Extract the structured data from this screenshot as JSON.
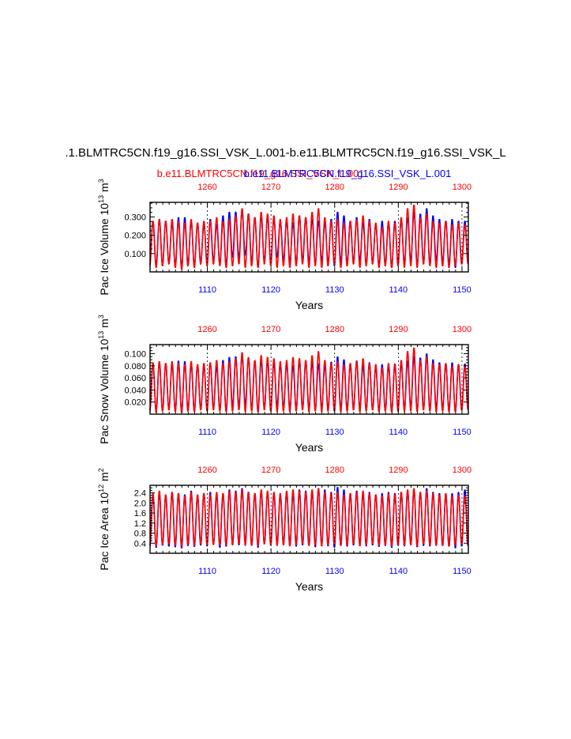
{
  "title": ".1.BLMTRC5CN.f19_g16.SSI_VSK_L.001-b.e11.BLMTRC5CN.f19_g16.SSI_VSK_L",
  "subtitle_red": "b.e11.BLMTRC5CN.f19_g16.SSI_VSK_L.001",
  "subtitle_blue": "b.e11.BLMTRC5CN.f19_g16.SSI_VSK_L.001",
  "colors": {
    "case1": "#0000ff",
    "case2": "#ff0000"
  },
  "chart_data": [
    {
      "type": "line",
      "id": "ice-volume",
      "ylabel": "Pac Ice Volume",
      "yunits_prefix": "10",
      "yunits_exp": "13",
      "yunits_suffix": "m",
      "yunits_suffix_exp": "3",
      "xlabel": "Years",
      "xlim_bottom": [
        1101,
        1151
      ],
      "xlim_top": [
        1251,
        1301
      ],
      "bottom_ticks": [
        "1110",
        "1120",
        "1130",
        "1140",
        "1150"
      ],
      "top_ticks": [
        "1260",
        "1270",
        "1280",
        "1290",
        "1300"
      ],
      "ylim": [
        0.0,
        0.38
      ],
      "yticks": [
        "0.100",
        "0.200",
        "0.300"
      ],
      "ytick_values": [
        0.1,
        0.2,
        0.3
      ],
      "series": [
        {
          "name": "b.e11.BLMTRC5CN.f19_g16.SSI_VSK_L.001 (blue)",
          "color": "#0000ff",
          "annual_max": [
            0.28,
            0.29,
            0.28,
            0.27,
            0.3,
            0.3,
            0.28,
            0.27,
            0.26,
            0.29,
            0.26,
            0.31,
            0.33,
            0.33,
            0.34,
            0.32,
            0.3,
            0.31,
            0.3,
            0.29,
            0.28,
            0.28,
            0.27,
            0.31,
            0.3,
            0.29,
            0.28,
            0.27,
            0.29,
            0.33,
            0.31,
            0.28,
            0.3,
            0.27,
            0.29,
            0.26,
            0.28,
            0.27,
            0.28,
            0.29,
            0.3,
            0.33,
            0.32,
            0.35,
            0.31,
            0.29,
            0.28,
            0.29,
            0.28,
            0.28
          ],
          "annual_min": [
            0.04,
            0.03,
            0.04,
            0.05,
            0.03,
            0.02,
            0.04,
            0.03,
            0.05,
            0.05,
            0.06,
            0.04,
            0.03,
            0.08,
            0.07,
            0.09,
            0.05,
            0.02,
            0.06,
            0.05,
            0.08,
            0.06,
            0.05,
            0.04,
            0.06,
            0.05,
            0.04,
            0.06,
            0.05,
            0.03,
            0.05,
            0.04,
            0.05,
            0.06,
            0.04,
            0.05,
            0.03,
            0.04,
            0.02,
            0.05,
            0.04,
            0.06,
            0.03,
            0.05,
            0.04,
            0.06,
            0.05,
            0.04,
            0.02,
            0.05
          ]
        },
        {
          "name": "b.e11.BLMTRC5CN.f19_g16.SSI_VSK_L.001 (red)",
          "color": "#ff0000",
          "annual_max": [
            0.28,
            0.29,
            0.28,
            0.29,
            0.28,
            0.27,
            0.29,
            0.27,
            0.28,
            0.28,
            0.3,
            0.28,
            0.29,
            0.31,
            0.35,
            0.32,
            0.3,
            0.33,
            0.32,
            0.31,
            0.29,
            0.3,
            0.32,
            0.31,
            0.3,
            0.33,
            0.35,
            0.3,
            0.28,
            0.29,
            0.27,
            0.28,
            0.29,
            0.31,
            0.28,
            0.27,
            0.25,
            0.28,
            0.27,
            0.3,
            0.35,
            0.37,
            0.3,
            0.32,
            0.28,
            0.27,
            0.28,
            0.26,
            0.27,
            0.26
          ],
          "annual_min": [
            0.03,
            0.02,
            0.03,
            0.04,
            0.02,
            0.01,
            0.03,
            0.02,
            0.04,
            0.03,
            0.04,
            0.03,
            0.02,
            0.03,
            0.04,
            0.02,
            0.03,
            0.02,
            0.04,
            0.03,
            0.02,
            0.03,
            0.02,
            0.03,
            0.04,
            0.02,
            0.03,
            0.02,
            0.03,
            0.04,
            0.02,
            0.03,
            0.04,
            0.02,
            0.03,
            0.04,
            0.02,
            0.03,
            0.02,
            0.03,
            0.02,
            0.03,
            0.02,
            0.04,
            0.03,
            0.02,
            0.03,
            0.02,
            0.03,
            0.04
          ]
        }
      ]
    },
    {
      "type": "line",
      "id": "snow-volume",
      "ylabel": "Pac Snow Volume",
      "yunits_prefix": "10",
      "yunits_exp": "13",
      "yunits_suffix": "m",
      "yunits_suffix_exp": "3",
      "xlabel": "Years",
      "xlim_bottom": [
        1101,
        1151
      ],
      "xlim_top": [
        1251,
        1301
      ],
      "bottom_ticks": [
        "1110",
        "1120",
        "1130",
        "1140",
        "1150"
      ],
      "top_ticks": [
        "1260",
        "1270",
        "1280",
        "1290",
        "1300"
      ],
      "ylim": [
        0.0,
        0.115
      ],
      "yticks": [
        "0.020",
        "0.040",
        "0.060",
        "0.080",
        "0.100"
      ],
      "ytick_values": [
        0.02,
        0.04,
        0.06,
        0.08,
        0.1
      ],
      "series": [
        {
          "name": "b.e11.BLMTRC5CN.f19_g16.SSI_VSK_L.001 (blue)",
          "color": "#0000ff",
          "annual_max": [
            0.085,
            0.087,
            0.084,
            0.083,
            0.089,
            0.088,
            0.084,
            0.082,
            0.08,
            0.086,
            0.079,
            0.09,
            0.095,
            0.096,
            0.098,
            0.094,
            0.088,
            0.09,
            0.088,
            0.086,
            0.083,
            0.084,
            0.081,
            0.09,
            0.088,
            0.086,
            0.084,
            0.081,
            0.087,
            0.096,
            0.091,
            0.084,
            0.089,
            0.081,
            0.086,
            0.078,
            0.083,
            0.081,
            0.084,
            0.086,
            0.089,
            0.096,
            0.094,
            0.101,
            0.091,
            0.086,
            0.084,
            0.086,
            0.083,
            0.084
          ],
          "annual_min": [
            0.006,
            0.004,
            0.006,
            0.008,
            0.005,
            0.003,
            0.006,
            0.004,
            0.008,
            0.008,
            0.01,
            0.006,
            0.004,
            0.013,
            0.011,
            0.015,
            0.008,
            0.003,
            0.01,
            0.008,
            0.013,
            0.01,
            0.008,
            0.006,
            0.01,
            0.008,
            0.006,
            0.01,
            0.008,
            0.004,
            0.008,
            0.006,
            0.008,
            0.01,
            0.006,
            0.008,
            0.004,
            0.006,
            0.003,
            0.008,
            0.006,
            0.01,
            0.004,
            0.008,
            0.006,
            0.01,
            0.008,
            0.006,
            0.003,
            0.008
          ]
        },
        {
          "name": "b.e11.BLMTRC5CN.f19_g16.SSI_VSK_L.001 (red)",
          "color": "#ff0000",
          "annual_max": [
            0.086,
            0.088,
            0.085,
            0.088,
            0.085,
            0.083,
            0.088,
            0.083,
            0.085,
            0.086,
            0.09,
            0.085,
            0.088,
            0.093,
            0.103,
            0.095,
            0.09,
            0.098,
            0.095,
            0.093,
            0.088,
            0.09,
            0.095,
            0.093,
            0.09,
            0.098,
            0.105,
            0.09,
            0.085,
            0.088,
            0.083,
            0.085,
            0.088,
            0.093,
            0.085,
            0.083,
            0.078,
            0.085,
            0.083,
            0.09,
            0.105,
            0.111,
            0.09,
            0.095,
            0.085,
            0.083,
            0.085,
            0.08,
            0.083,
            0.08
          ],
          "annual_min": [
            0.004,
            0.002,
            0.004,
            0.006,
            0.003,
            0.002,
            0.004,
            0.003,
            0.006,
            0.004,
            0.006,
            0.004,
            0.003,
            0.004,
            0.006,
            0.003,
            0.004,
            0.003,
            0.006,
            0.004,
            0.003,
            0.004,
            0.003,
            0.004,
            0.006,
            0.003,
            0.004,
            0.003,
            0.004,
            0.006,
            0.003,
            0.004,
            0.006,
            0.003,
            0.004,
            0.006,
            0.003,
            0.004,
            0.003,
            0.004,
            0.003,
            0.004,
            0.003,
            0.006,
            0.004,
            0.003,
            0.004,
            0.003,
            0.004,
            0.006
          ]
        }
      ]
    },
    {
      "type": "line",
      "id": "ice-area",
      "ylabel": "Pac Ice Area",
      "yunits_prefix": "10",
      "yunits_exp": "12",
      "yunits_suffix": "m",
      "yunits_suffix_exp": "2",
      "xlabel": "Years",
      "xlim_bottom": [
        1101,
        1151
      ],
      "xlim_top": [
        1251,
        1301
      ],
      "bottom_ticks": [
        "1110",
        "1120",
        "1130",
        "1140",
        "1150"
      ],
      "top_ticks": [
        "1260",
        "1270",
        "1280",
        "1290",
        "1300"
      ],
      "ylim": [
        0.0,
        2.7
      ],
      "yticks": [
        "0.4",
        "0.8",
        "1.2",
        "1.6",
        "2.0",
        "2.4"
      ],
      "ytick_values": [
        0.4,
        0.8,
        1.2,
        1.6,
        2.0,
        2.4
      ],
      "series": [
        {
          "name": "b.e11.BLMTRC5CN.f19_g16.SSI_VSK_L.001 (blue)",
          "color": "#0000ff",
          "annual_max": [
            2.35,
            2.4,
            2.3,
            2.45,
            2.4,
            2.35,
            2.5,
            2.3,
            2.4,
            2.45,
            2.35,
            2.4,
            2.55,
            2.5,
            2.6,
            2.45,
            2.4,
            2.5,
            2.45,
            2.4,
            2.35,
            2.45,
            2.4,
            2.55,
            2.5,
            2.45,
            2.6,
            2.55,
            2.45,
            2.65,
            2.55,
            2.4,
            2.5,
            2.4,
            2.45,
            2.35,
            2.4,
            2.45,
            2.4,
            2.45,
            2.5,
            2.55,
            2.45,
            2.6,
            2.45,
            2.4,
            2.35,
            2.4,
            2.45,
            2.55
          ],
          "annual_min": [
            0.25,
            0.2,
            0.3,
            0.25,
            0.22,
            0.18,
            0.28,
            0.24,
            0.3,
            0.26,
            0.32,
            0.2,
            0.25,
            0.35,
            0.3,
            0.4,
            0.28,
            0.2,
            0.35,
            0.3,
            0.38,
            0.32,
            0.28,
            0.25,
            0.3,
            0.28,
            0.22,
            0.3,
            0.26,
            0.2,
            0.28,
            0.25,
            0.3,
            0.32,
            0.26,
            0.3,
            0.24,
            0.28,
            0.2,
            0.3,
            0.26,
            0.32,
            0.22,
            0.28,
            0.26,
            0.3,
            0.28,
            0.25,
            0.18,
            0.26
          ]
        },
        {
          "name": "b.e11.BLMTRC5CN.f19_g16.SSI_VSK_L.001 (red)",
          "color": "#ff0000",
          "annual_max": [
            2.4,
            2.5,
            2.35,
            2.45,
            2.4,
            2.3,
            2.45,
            2.35,
            2.4,
            2.35,
            2.45,
            2.4,
            2.5,
            2.45,
            2.55,
            2.45,
            2.4,
            2.55,
            2.5,
            2.45,
            2.4,
            2.5,
            2.55,
            2.5,
            2.45,
            2.55,
            2.6,
            2.45,
            2.4,
            2.45,
            2.35,
            2.4,
            2.45,
            2.5,
            2.4,
            2.35,
            2.3,
            2.4,
            2.35,
            2.45,
            2.55,
            2.6,
            2.45,
            2.5,
            2.4,
            2.35,
            2.4,
            2.3,
            2.35,
            2.3
          ],
          "annual_min": [
            0.3,
            0.25,
            0.32,
            0.35,
            0.28,
            0.25,
            0.32,
            0.28,
            0.35,
            0.3,
            0.32,
            0.3,
            0.28,
            0.3,
            0.35,
            0.28,
            0.3,
            0.26,
            0.35,
            0.32,
            0.28,
            0.3,
            0.26,
            0.3,
            0.35,
            0.28,
            0.3,
            0.26,
            0.3,
            0.35,
            0.28,
            0.3,
            0.35,
            0.26,
            0.3,
            0.35,
            0.28,
            0.3,
            0.26,
            0.3,
            0.28,
            0.3,
            0.26,
            0.35,
            0.3,
            0.28,
            0.3,
            0.26,
            0.3,
            0.35
          ]
        }
      ]
    }
  ]
}
